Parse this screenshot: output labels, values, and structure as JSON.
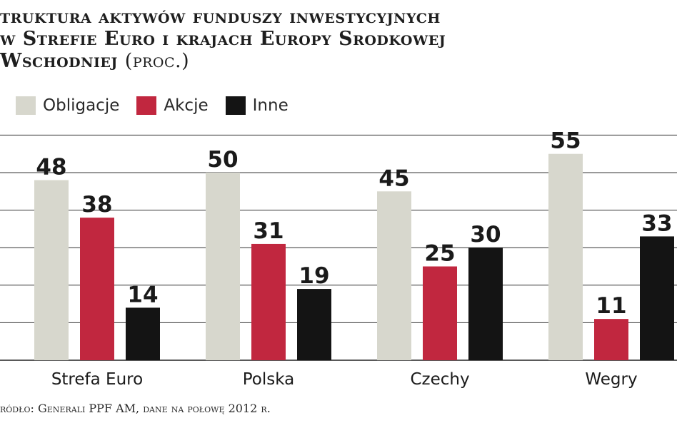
{
  "chart_data": {
    "type": "bar",
    "title_lines": [
      "truktura aktywów funduszy inwestycyjnych",
      "w Strefie Euro i krajach Europy Srodkowej",
      "Wschodniej"
    ],
    "title_unit": "(proc.)",
    "categories": [
      "Strefa Euro",
      "Polska",
      "Czechy",
      "Wegry"
    ],
    "series": [
      {
        "name": "Obligacje",
        "color": "#d7d7cd",
        "values": [
          48,
          50,
          45,
          55
        ]
      },
      {
        "name": "Akcje",
        "color": "#c1273f",
        "values": [
          38,
          31,
          25,
          11
        ]
      },
      {
        "name": "Inne",
        "color": "#141414",
        "values": [
          14,
          19,
          30,
          33
        ]
      }
    ],
    "ylim": [
      0,
      60
    ],
    "grid": true,
    "legend_position": "top-left",
    "source": "ródło: Generali PPF AM, dane na połowę 2012 r."
  }
}
